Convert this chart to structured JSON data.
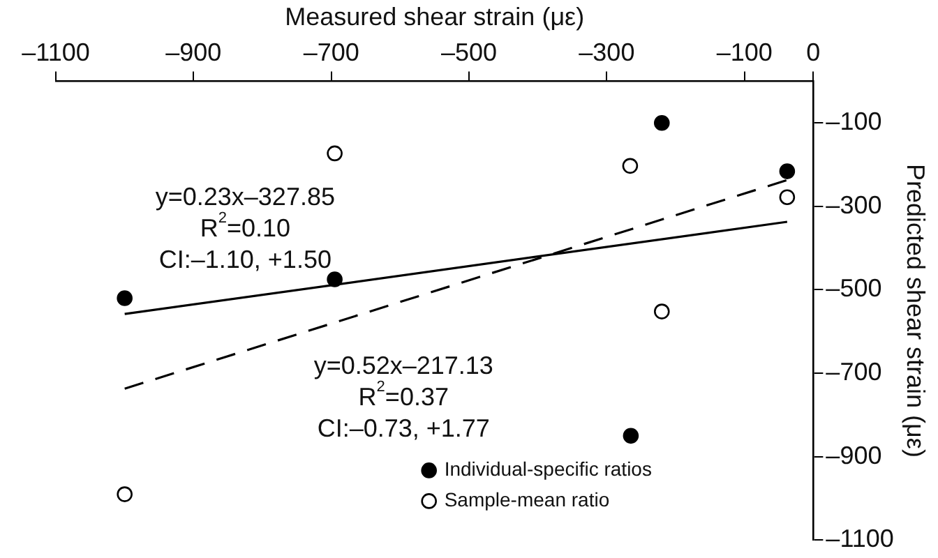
{
  "chart_data": {
    "type": "scatter",
    "xlabel": "Measured shear strain (με)",
    "ylabel": "Predicted shear strain (με)",
    "xlim": [
      -1100,
      0
    ],
    "xticks": [
      {
        "value": -1100,
        "label": "–1100"
      },
      {
        "value": -900,
        "label": "–900"
      },
      {
        "value": -700,
        "label": "–700"
      },
      {
        "value": -500,
        "label": "–500"
      },
      {
        "value": -300,
        "label": "–300"
      },
      {
        "value": -100,
        "label": "–100"
      },
      0
    ],
    "ylim": [
      -1100,
      0
    ],
    "yticks": [
      {
        "value": -1100,
        "label": "–1100"
      },
      {
        "value": -900,
        "label": "–900"
      },
      {
        "value": -700,
        "label": "–700"
      },
      {
        "value": -500,
        "label": "–500"
      },
      {
        "value": -300,
        "label": "–300"
      },
      {
        "value": -100,
        "label": "–100"
      }
    ],
    "grid": false,
    "legend": "bottom",
    "marker": "circle",
    "series": [
      {
        "name": "Individual-specific ratios",
        "color": "#000000",
        "x": [
          -1000,
          -695,
          -220,
          -38,
          -265
        ],
        "values": [
          -520,
          -475,
          -100,
          -216,
          -850
        ]
      },
      {
        "name": "Sample-mean ratio",
        "color": "#ffffff",
        "x": [
          -1000,
          -695,
          -266,
          -220,
          -38
        ],
        "values": [
          -990,
          -173,
          -203,
          -552,
          -278
        ]
      },
      {
        "type": "line",
        "color": "#000000",
        "line_style": "solid",
        "marker": "none",
        "x": [
          -1000,
          -38
        ],
        "values": [
          -558,
          -337
        ]
      },
      {
        "type": "line",
        "color": "#000000",
        "line_style": "dashed",
        "marker": "none",
        "x": [
          -1000,
          -38
        ],
        "values": [
          -737,
          -237
        ]
      }
    ],
    "annotations": [
      "y=0.23x–327.85",
      "R$^{2}$=0.10",
      "CI:–1.10, +1.50",
      "y=0.52x–217.13",
      "R$^{2}$=0.37",
      "CI:–0.73, +1.77"
    ]
  }
}
